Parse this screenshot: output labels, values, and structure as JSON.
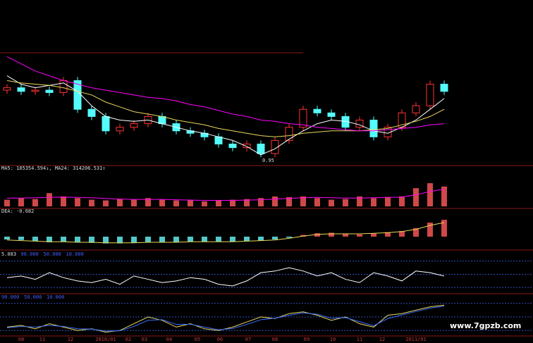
{
  "chart_data": [
    {
      "type": "candlestick",
      "up_color": "#ff3232",
      "down_color": "#54fcfc",
      "ylim": [
        0,
        100
      ],
      "annotation": "0.95",
      "open": [
        60,
        62,
        59,
        60,
        58,
        68,
        44,
        38,
        26,
        29,
        32,
        38,
        32,
        26,
        24,
        21,
        15,
        12,
        15,
        7,
        18,
        29,
        44,
        41,
        38,
        29,
        35,
        21,
        29,
        41,
        47,
        65
      ],
      "high": [
        65,
        65,
        63,
        63,
        71,
        71,
        47,
        41,
        32,
        35,
        41,
        41,
        35,
        29,
        27,
        24,
        18,
        18,
        18,
        21,
        32,
        47,
        47,
        44,
        41,
        38,
        38,
        32,
        44,
        50,
        68,
        68
      ],
      "low": [
        57,
        56,
        56,
        55,
        55,
        41,
        35,
        23,
        23,
        26,
        29,
        29,
        23,
        21,
        18,
        12,
        9,
        9,
        4,
        4,
        15,
        26,
        38,
        35,
        26,
        26,
        18,
        18,
        26,
        38,
        44,
        56
      ],
      "close": [
        62,
        59,
        60,
        58,
        68,
        44,
        38,
        26,
        29,
        32,
        38,
        32,
        26,
        24,
        21,
        15,
        12,
        15,
        7,
        18,
        29,
        44,
        41,
        38,
        29,
        35,
        21,
        29,
        41,
        47,
        65,
        59
      ],
      "series": [
        {
          "color": "#ffffff",
          "values": [
            72,
            65,
            62,
            64,
            66,
            59,
            47,
            38,
            35,
            34,
            35,
            32,
            29,
            26,
            24,
            21,
            18,
            13,
            6,
            11,
            19,
            26,
            32,
            35,
            34,
            31,
            26,
            24,
            29,
            35,
            44,
            53
          ]
        },
        {
          "color": "#e8d85a",
          "values": [
            68,
            66,
            65,
            64,
            62,
            59,
            56,
            50,
            46,
            42,
            40,
            38,
            35,
            33,
            31,
            28,
            26,
            24,
            22,
            21,
            22,
            24,
            25,
            26,
            26,
            26,
            27,
            28,
            31,
            34,
            38,
            44
          ]
        },
        {
          "color": "#ff00ff",
          "values": [
            88,
            82,
            76,
            72,
            68,
            65,
            62,
            60,
            58,
            56,
            54,
            53,
            51,
            48,
            46,
            43,
            40,
            38,
            35,
            34,
            32,
            31,
            29,
            28,
            27,
            26,
            26,
            27,
            28,
            29,
            31,
            32
          ]
        }
      ]
    },
    {
      "type": "bar",
      "header": "MA5: 185354.594↓, MA24: 314206.531↑",
      "color": "#d04848",
      "ylim": [
        0,
        100
      ],
      "values": [
        20,
        25,
        22,
        40,
        30,
        25,
        20,
        18,
        22,
        20,
        25,
        20,
        18,
        20,
        15,
        18,
        20,
        22,
        25,
        30,
        28,
        30,
        25,
        20,
        22,
        30,
        25,
        28,
        30,
        55,
        70,
        60
      ],
      "series": [
        {
          "color": "#ff00ff",
          "values": [
            25,
            25,
            26,
            27,
            28,
            27,
            26,
            24,
            22,
            21,
            21,
            21,
            20,
            19,
            18,
            18,
            18,
            19,
            20,
            22,
            24,
            26,
            27,
            26,
            25,
            25,
            26,
            27,
            28,
            35,
            45,
            52
          ]
        }
      ]
    },
    {
      "type": "bar",
      "header": "DEA: -0.682",
      "up_color": "#d04848",
      "down_color": "#54c8c8",
      "ylim": [
        -20,
        40
      ],
      "values": [
        -5,
        -6,
        -8,
        -10,
        -9,
        -10,
        -11,
        -12,
        -12,
        -11,
        -10,
        -10,
        -10,
        -9,
        -9,
        -9,
        -9,
        -8,
        -7,
        -5,
        -2,
        3,
        6,
        7,
        5,
        4,
        6,
        8,
        10,
        15,
        25,
        30
      ],
      "series": [
        {
          "color": "#e8d85a",
          "values": [
            -6,
            -7,
            -8,
            -9,
            -9,
            -10,
            -10,
            -11,
            -11,
            -11,
            -10,
            -10,
            -10,
            -9,
            -9,
            -9,
            -9,
            -8,
            -7,
            -6,
            -3,
            1,
            4,
            5,
            5,
            5,
            6,
            7,
            9,
            13,
            20,
            25
          ]
        }
      ]
    },
    {
      "type": "line",
      "header": "5.083",
      "ylim": [
        0,
        100
      ],
      "levels": [
        {
          "value": 90,
          "label": "90.000"
        },
        {
          "value": 50,
          "label": "50.000"
        },
        {
          "value": 10,
          "label": "10.000"
        }
      ],
      "series": [
        {
          "color": "#ffffff",
          "values": [
            40,
            45,
            35,
            55,
            40,
            30,
            25,
            35,
            20,
            45,
            35,
            25,
            30,
            40,
            35,
            20,
            15,
            30,
            55,
            60,
            70,
            60,
            45,
            55,
            35,
            25,
            55,
            45,
            30,
            60,
            55,
            45
          ]
        }
      ]
    },
    {
      "type": "line",
      "ylim": [
        0,
        100
      ],
      "levels": [
        {
          "value": 90,
          "label": "90.000"
        },
        {
          "value": 50,
          "label": "50.000"
        },
        {
          "value": 10,
          "label": "10.000"
        }
      ],
      "series": [
        {
          "color": "#e8d85a",
          "values": [
            20,
            25,
            15,
            30,
            20,
            10,
            15,
            5,
            10,
            30,
            50,
            40,
            20,
            30,
            15,
            10,
            20,
            35,
            50,
            45,
            60,
            65,
            55,
            40,
            50,
            30,
            20,
            55,
            60,
            70,
            80,
            85
          ]
        },
        {
          "color": "#3a6cff",
          "values": [
            18,
            22,
            20,
            25,
            22,
            15,
            14,
            8,
            9,
            22,
            40,
            42,
            28,
            28,
            20,
            12,
            16,
            28,
            42,
            46,
            55,
            62,
            58,
            46,
            48,
            36,
            24,
            45,
            56,
            66,
            76,
            82
          ]
        }
      ]
    }
  ],
  "time_axis": [
    "08",
    "11",
    "12",
    "2010/01",
    "02",
    "03",
    "04",
    "05",
    "06",
    "07",
    "08",
    "09",
    "10",
    "11",
    "12",
    "2011/01"
  ],
  "watermark": "www.7gpzb.com"
}
